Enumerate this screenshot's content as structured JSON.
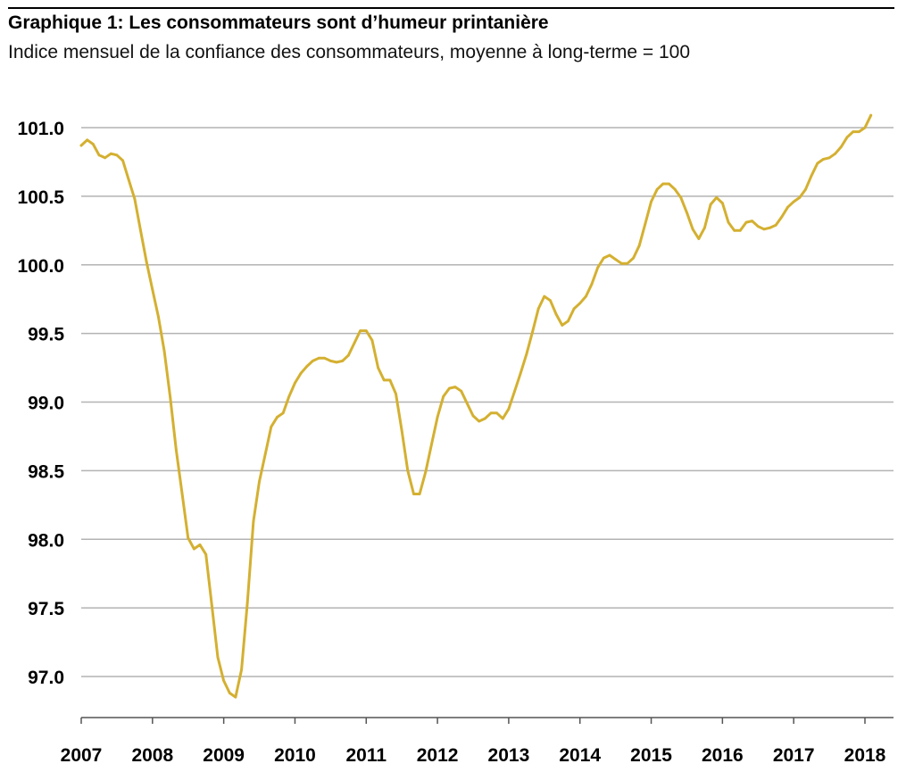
{
  "title": "Graphique 1: Les consommateurs sont d’humeur printanière",
  "subtitle": "Indice mensuel de la confiance des consommateurs, moyenne à long-terme = 100",
  "colors": {
    "line": "#D4B031",
    "grid": "#B3B3B3",
    "axis": "#555555"
  },
  "chart_data": {
    "type": "line",
    "title": "Graphique 1: Les consommateurs sont d’humeur printanière",
    "subtitle": "Indice mensuel de la confiance des consommateurs, moyenne à long-terme = 100",
    "xlabel": "",
    "ylabel": "",
    "ylim": [
      96.7,
      101.2
    ],
    "yticks": [
      97.0,
      97.5,
      98.0,
      98.5,
      99.0,
      99.5,
      100.0,
      100.5,
      101.0
    ],
    "ytick_labels": [
      "97.0",
      "97.5",
      "98.0",
      "98.5",
      "99.0",
      "99.5",
      "100.0",
      "100.5",
      "101.0"
    ],
    "xticks": [
      2007,
      2008,
      2009,
      2010,
      2011,
      2012,
      2013,
      2014,
      2015,
      2016,
      2017,
      2018
    ],
    "xtick_labels": [
      "2007",
      "2008",
      "2009",
      "2010",
      "2011",
      "2012",
      "2013",
      "2014",
      "2015",
      "2016",
      "2017",
      "2018"
    ],
    "grid": true,
    "series": [
      {
        "x": [
          "2007-01",
          "2007-02",
          "2007-03",
          "2007-04",
          "2007-05",
          "2007-06",
          "2007-07",
          "2007-08",
          "2007-09",
          "2007-10",
          "2007-11",
          "2007-12",
          "2008-01",
          "2008-02",
          "2008-03",
          "2008-04",
          "2008-05",
          "2008-06",
          "2008-07",
          "2008-08",
          "2008-09",
          "2008-10",
          "2008-11",
          "2008-12",
          "2009-01",
          "2009-02",
          "2009-03",
          "2009-04",
          "2009-05",
          "2009-06",
          "2009-07",
          "2009-08",
          "2009-09",
          "2009-10",
          "2009-11",
          "2009-12",
          "2010-01",
          "2010-02",
          "2010-03",
          "2010-04",
          "2010-05",
          "2010-06",
          "2010-07",
          "2010-08",
          "2010-09",
          "2010-10",
          "2010-11",
          "2010-12",
          "2011-01",
          "2011-02",
          "2011-03",
          "2011-04",
          "2011-05",
          "2011-06",
          "2011-07",
          "2011-08",
          "2011-09",
          "2011-10",
          "2011-11",
          "2011-12",
          "2012-01",
          "2012-02",
          "2012-03",
          "2012-04",
          "2012-05",
          "2012-06",
          "2012-07",
          "2012-08",
          "2012-09",
          "2012-10",
          "2012-11",
          "2012-12",
          "2013-01",
          "2013-02",
          "2013-03",
          "2013-04",
          "2013-05",
          "2013-06",
          "2013-07",
          "2013-08",
          "2013-09",
          "2013-10",
          "2013-11",
          "2013-12",
          "2014-01",
          "2014-02",
          "2014-03",
          "2014-04",
          "2014-05",
          "2014-06",
          "2014-07",
          "2014-08",
          "2014-09",
          "2014-10",
          "2014-11",
          "2014-12",
          "2015-01",
          "2015-02",
          "2015-03",
          "2015-04",
          "2015-05",
          "2015-06",
          "2015-07",
          "2015-08",
          "2015-09",
          "2015-10",
          "2015-11",
          "2015-12",
          "2016-01",
          "2016-02",
          "2016-03",
          "2016-04",
          "2016-05",
          "2016-06",
          "2016-07",
          "2016-08",
          "2016-09",
          "2016-10",
          "2016-11",
          "2016-12",
          "2017-01",
          "2017-02",
          "2017-03",
          "2017-04",
          "2017-05",
          "2017-06",
          "2017-07",
          "2017-08",
          "2017-09",
          "2017-10",
          "2017-11",
          "2017-12",
          "2018-01",
          "2018-02"
        ],
        "values": [
          100.87,
          100.91,
          100.88,
          100.8,
          100.78,
          100.81,
          100.8,
          100.76,
          100.62,
          100.48,
          100.25,
          100.02,
          99.82,
          99.62,
          99.37,
          99.03,
          98.65,
          98.33,
          98.01,
          97.93,
          97.96,
          97.89,
          97.52,
          97.14,
          96.97,
          96.88,
          96.85,
          97.05,
          97.54,
          98.13,
          98.42,
          98.62,
          98.82,
          98.89,
          98.92,
          99.04,
          99.14,
          99.21,
          99.26,
          99.3,
          99.32,
          99.32,
          99.3,
          99.29,
          99.3,
          99.34,
          99.43,
          99.52,
          99.52,
          99.45,
          99.25,
          99.16,
          99.16,
          99.06,
          98.79,
          98.5,
          98.33,
          98.33,
          98.49,
          98.69,
          98.89,
          99.04,
          99.1,
          99.11,
          99.08,
          98.99,
          98.9,
          98.86,
          98.88,
          98.92,
          98.92,
          98.88,
          98.95,
          99.08,
          99.21,
          99.35,
          99.51,
          99.68,
          99.77,
          99.74,
          99.64,
          99.56,
          99.59,
          99.68,
          99.72,
          99.77,
          99.86,
          99.98,
          100.05,
          100.07,
          100.04,
          100.01,
          100.01,
          100.05,
          100.14,
          100.3,
          100.46,
          100.55,
          100.59,
          100.59,
          100.55,
          100.49,
          100.38,
          100.26,
          100.19,
          100.27,
          100.44,
          100.49,
          100.45,
          100.31,
          100.25,
          100.25,
          100.31,
          100.32,
          100.28,
          100.26,
          100.27,
          100.29,
          100.35,
          100.42,
          100.46,
          100.49,
          100.55,
          100.65,
          100.74,
          100.77,
          100.78,
          100.81,
          100.86,
          100.93,
          100.97,
          100.97,
          101.0,
          101.09
        ]
      }
    ]
  }
}
